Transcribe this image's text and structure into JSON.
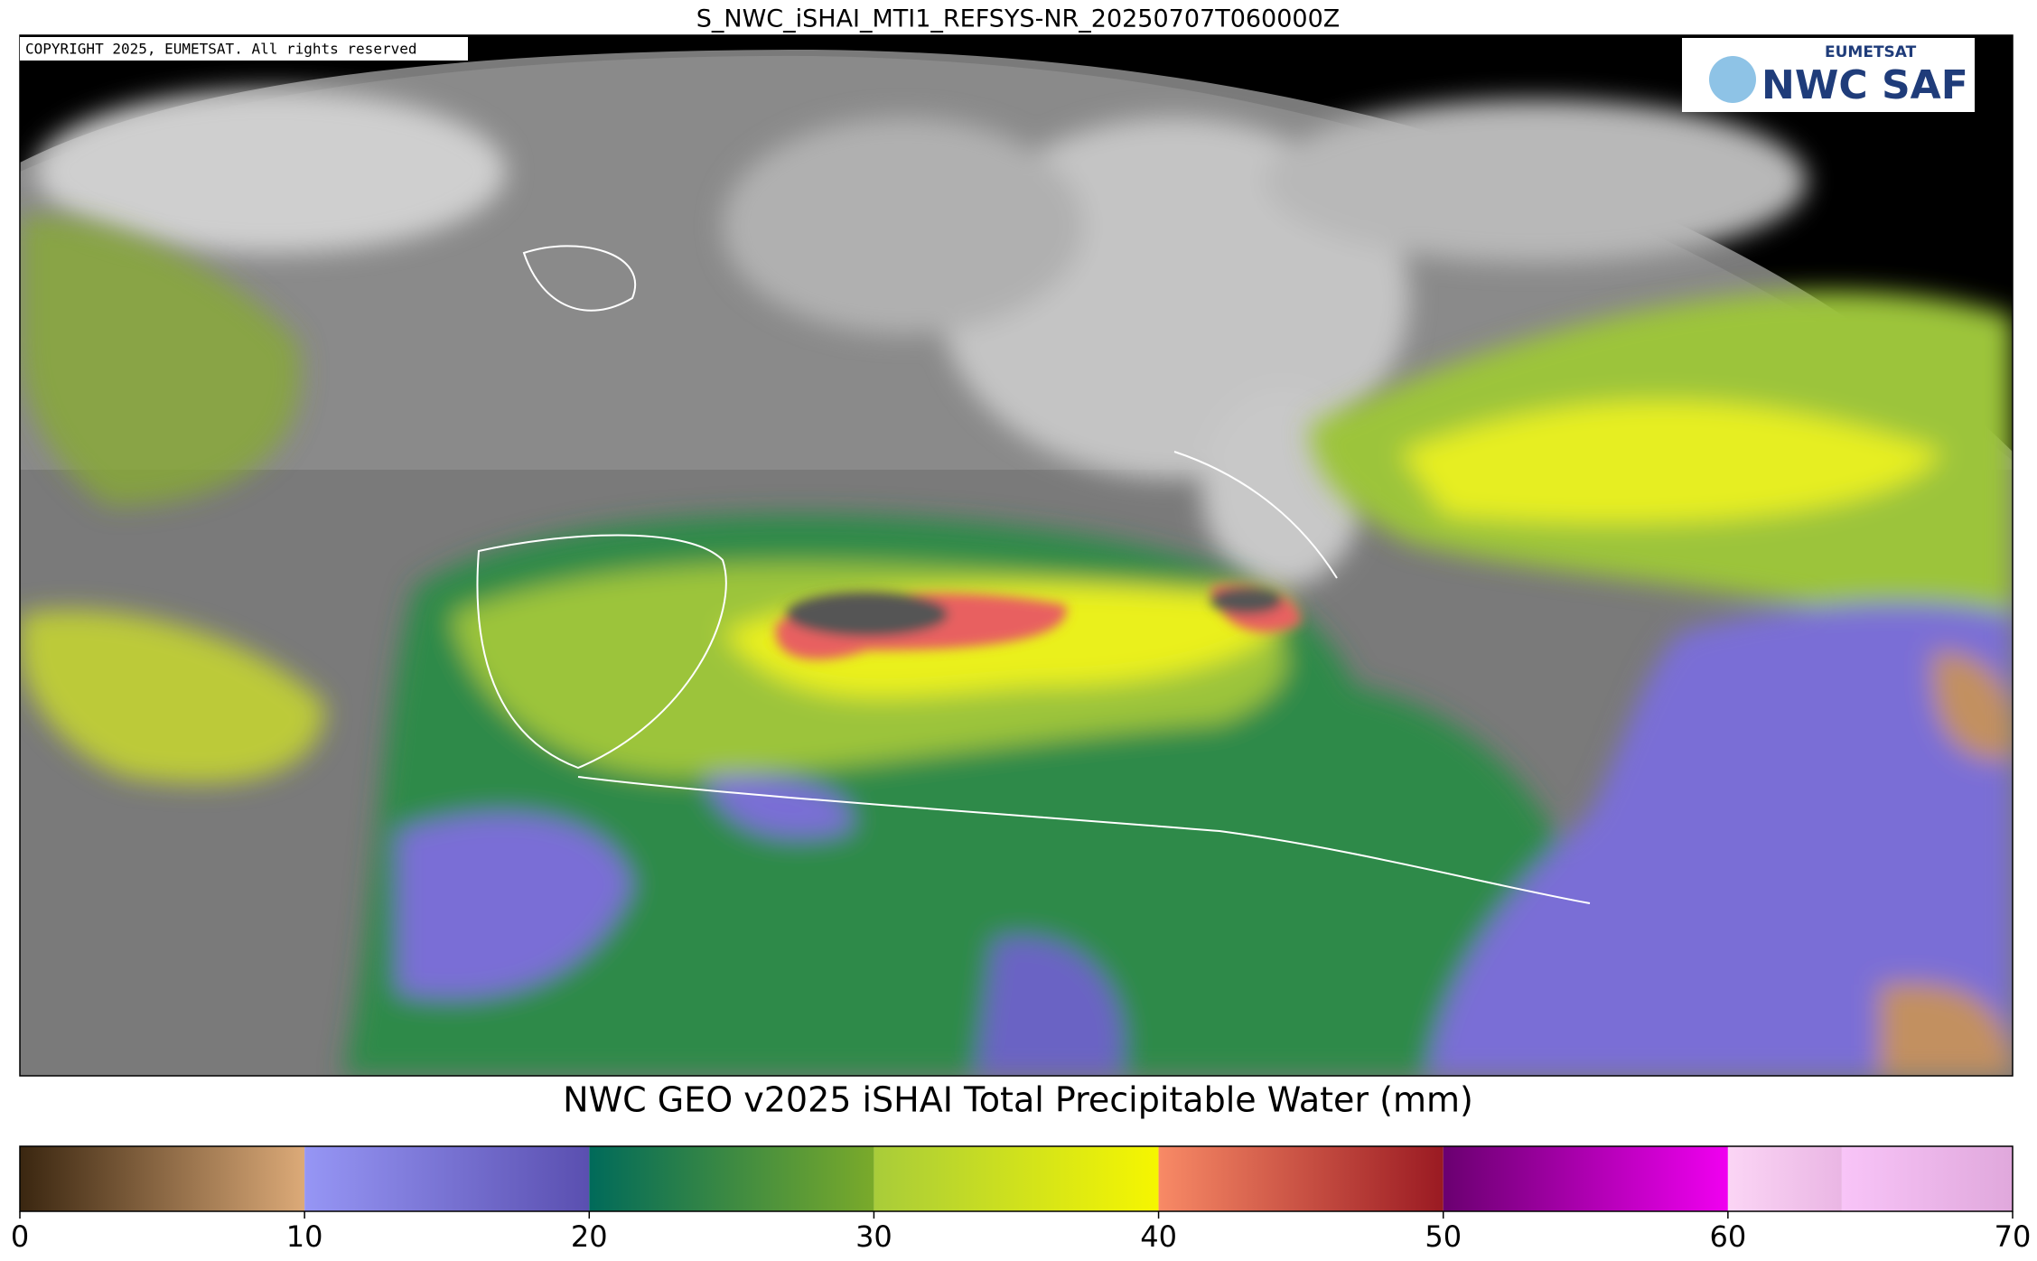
{
  "header": {
    "title": "S_NWC_iSHAI_MTI1_REFSYS-NR_20250707T060000Z"
  },
  "map": {
    "copyright": "COPYRIGHT 2025, EUMETSAT. All rights reserved",
    "logo": {
      "top": "EUMETSAT",
      "main": "NWC SAF"
    }
  },
  "colorbar": {
    "title": "NWC GEO v2025 iSHAI Total Precipitable Water (mm)",
    "range": [
      0,
      70
    ],
    "ticks": [
      0,
      10,
      20,
      30,
      40,
      50,
      60,
      70
    ],
    "segments": [
      {
        "from": 0,
        "to": 10,
        "start": "#3a2610",
        "end": "#dcaa78"
      },
      {
        "from": 10,
        "to": 20,
        "start": "#9696f5",
        "end": "#5a4fb0"
      },
      {
        "from": 20,
        "to": 30,
        "start": "#006a5a",
        "end": "#7aaa2a"
      },
      {
        "from": 30,
        "to": 40,
        "start": "#a8cc3a",
        "end": "#f6f600"
      },
      {
        "from": 40,
        "to": 50,
        "start": "#f88a66",
        "end": "#9a1a22"
      },
      {
        "from": 50,
        "to": 60,
        "start": "#6a0070",
        "end": "#f000f0"
      },
      {
        "from": 60,
        "to": 64,
        "start": "#fbd5f5",
        "end": "#eab6e4"
      },
      {
        "from": 64,
        "to": 70,
        "start": "#f8c4f8",
        "end": "#e0a8dc"
      }
    ]
  }
}
